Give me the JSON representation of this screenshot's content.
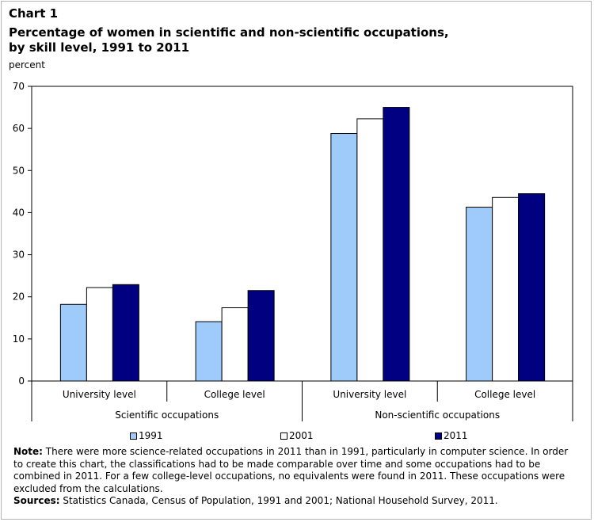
{
  "header": {
    "chart_number": "Chart 1",
    "title": "Percentage of women in scientific and non-scientific occupations, by skill level, 1991 to 2011",
    "y_unit": "percent"
  },
  "chart_data": {
    "type": "bar",
    "title": "Percentage of women in scientific and non-scientific occupations, by skill level, 1991 to 2011",
    "ylabel": "percent",
    "xlabel": "",
    "ylim": [
      0,
      70
    ],
    "yticks": [
      0,
      10,
      20,
      30,
      40,
      50,
      60,
      70
    ],
    "grid": false,
    "categories": [
      "University level",
      "College level",
      "University level",
      "College level"
    ],
    "groups": [
      {
        "label": "Scientific occupations",
        "category_indices": [
          0,
          1
        ]
      },
      {
        "label": "Non-scientific occupations",
        "category_indices": [
          2,
          3
        ]
      }
    ],
    "series": [
      {
        "name": "1991",
        "color": "#9ecbfa",
        "values": [
          18.2,
          14.1,
          58.8,
          41.3
        ]
      },
      {
        "name": "2001",
        "color": "#ffffff",
        "values": [
          22.2,
          17.4,
          62.3,
          43.6
        ]
      },
      {
        "name": "2011",
        "color": "#000080",
        "values": [
          22.9,
          21.5,
          65.0,
          44.5
        ]
      }
    ],
    "legend_position": "bottom"
  },
  "notes": {
    "note_label": "Note:",
    "note_text": " There were more science-related occupations in 2011 than in 1991, particularly in computer science. In order to create this chart, the classifications had to be made comparable over time and some occupations had to be combined in 2011. For a few college-level occupations, no equivalents were found in 2011. These occupations were excluded from the calculations.",
    "sources_label": "Sources:",
    "sources_text": " Statistics Canada, Census of Population, 1991 and 2001; National Household Survey, 2011."
  }
}
